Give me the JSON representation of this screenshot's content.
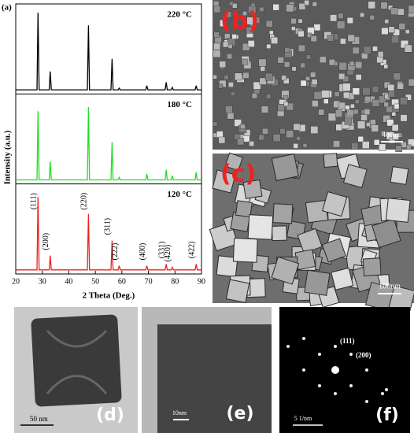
{
  "chart_data": {
    "type": "line",
    "panel_label": "(a)",
    "xlabel": "2 Theta (Deg.)",
    "ylabel": "Intensity (a.u.)",
    "x": [
      20,
      28.0,
      28.4,
      28.8,
      32.6,
      33.0,
      33.4,
      47.0,
      47.4,
      47.8,
      55.9,
      56.3,
      56.7,
      58.6,
      59.0,
      59.4,
      69.0,
      69.4,
      69.8,
      76.3,
      76.7,
      77.1,
      78.6,
      79.0,
      79.4,
      87.6,
      88.0,
      88.4,
      90
    ],
    "xlim": [
      20,
      90
    ],
    "xticks": [
      20,
      30,
      40,
      50,
      60,
      70,
      80,
      90
    ],
    "ylim": [
      0,
      100
    ],
    "series": [
      {
        "name": "220 °C",
        "color": "#000000",
        "values": [
          3,
          3,
          95,
          3,
          3,
          25,
          3,
          3,
          80,
          3,
          3,
          40,
          3,
          3,
          5,
          3,
          3,
          8,
          3,
          3,
          12,
          3,
          3,
          6,
          3,
          3,
          8,
          3,
          3
        ]
      },
      {
        "name": "180 °C",
        "color": "#22dd22",
        "values": [
          3,
          3,
          85,
          3,
          3,
          25,
          3,
          3,
          90,
          3,
          3,
          48,
          3,
          3,
          6,
          3,
          3,
          10,
          3,
          3,
          15,
          3,
          3,
          8,
          3,
          3,
          12,
          3,
          3
        ]
      },
      {
        "name": "120 °C",
        "color": "#ee2222",
        "values": [
          3,
          3,
          90,
          3,
          3,
          20,
          3,
          3,
          70,
          3,
          3,
          38,
          3,
          3,
          8,
          3,
          3,
          8,
          3,
          3,
          10,
          3,
          3,
          6,
          3,
          3,
          10,
          3,
          3
        ]
      }
    ],
    "annotations": [
      {
        "text": "(111)",
        "x": 28.4
      },
      {
        "text": "(200)",
        "x": 33.0
      },
      {
        "text": "(220)",
        "x": 47.4
      },
      {
        "text": "(311)",
        "x": 56.3
      },
      {
        "text": "(222)",
        "x": 59.0
      },
      {
        "text": "(400)",
        "x": 69.4
      },
      {
        "text": "(331)",
        "x": 76.7
      },
      {
        "text": "(420)",
        "x": 79.0
      },
      {
        "text": "(422)",
        "x": 88.0
      }
    ]
  },
  "panels": {
    "b": {
      "label": "(b)",
      "scale": "400nm"
    },
    "c": {
      "label": "(c)",
      "scale": "100nm"
    },
    "d": {
      "label": "(d)",
      "scale": "50 nm"
    },
    "e": {
      "label": "(e)",
      "scale": "10nm"
    },
    "f": {
      "label": "(f)",
      "scale": "5 1/nm",
      "spots": [
        "(111)",
        "(200)"
      ]
    }
  }
}
